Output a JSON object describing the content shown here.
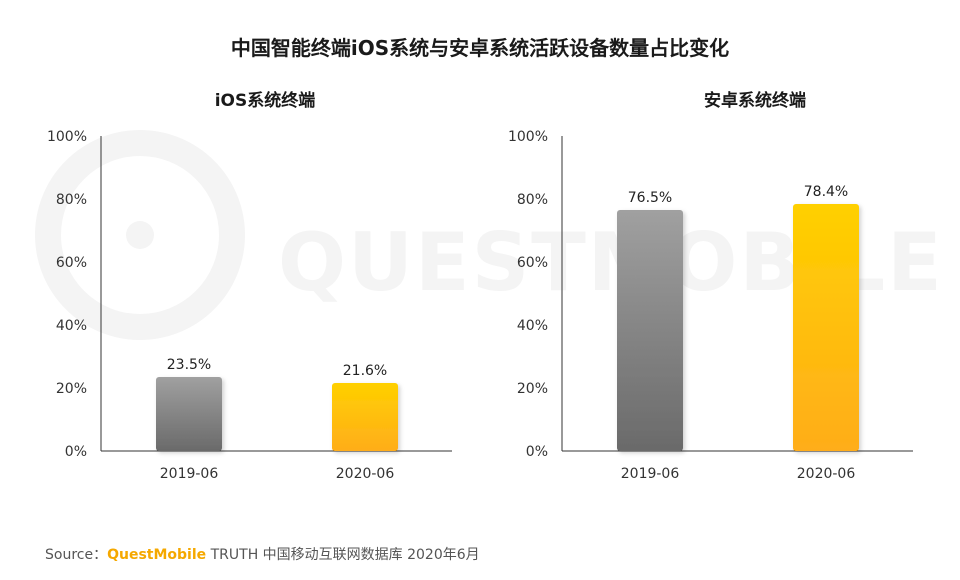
{
  "title": "中国智能终端iOS系统与安卓系统活跃设备数量占比变化",
  "source": {
    "prefix": "Source：",
    "brand": "QuestMobile",
    "rest": "TRUTH 中国移动互联网数据库 2020年6月"
  },
  "watermark": "QUESTMOBILE",
  "colors": {
    "gray_top": "#a0a0a0",
    "gray_bottom": "#6a6a6a",
    "yellow_top": "#ffd000",
    "yellow_bottom": "#ffad1a"
  },
  "chart_data": [
    {
      "type": "bar",
      "title": "iOS系统终端",
      "categories": [
        "2019-06",
        "2020-06"
      ],
      "values": [
        23.5,
        21.6
      ],
      "value_labels": [
        "23.5%",
        "21.6%"
      ],
      "bar_colors": [
        "gray",
        "yellow"
      ],
      "ylim": [
        0,
        100
      ],
      "y_ticks": [
        "0%",
        "20%",
        "40%",
        "60%",
        "80%",
        "100%"
      ],
      "xlabel": "",
      "ylabel": "",
      "grid": false
    },
    {
      "type": "bar",
      "title": "安卓系统终端",
      "categories": [
        "2019-06",
        "2020-06"
      ],
      "values": [
        76.5,
        78.4
      ],
      "value_labels": [
        "76.5%",
        "78.4%"
      ],
      "bar_colors": [
        "gray",
        "yellow"
      ],
      "ylim": [
        0,
        100
      ],
      "y_ticks": [
        "0%",
        "20%",
        "40%",
        "60%",
        "80%",
        "100%"
      ],
      "xlabel": "",
      "ylabel": "",
      "grid": false
    }
  ]
}
